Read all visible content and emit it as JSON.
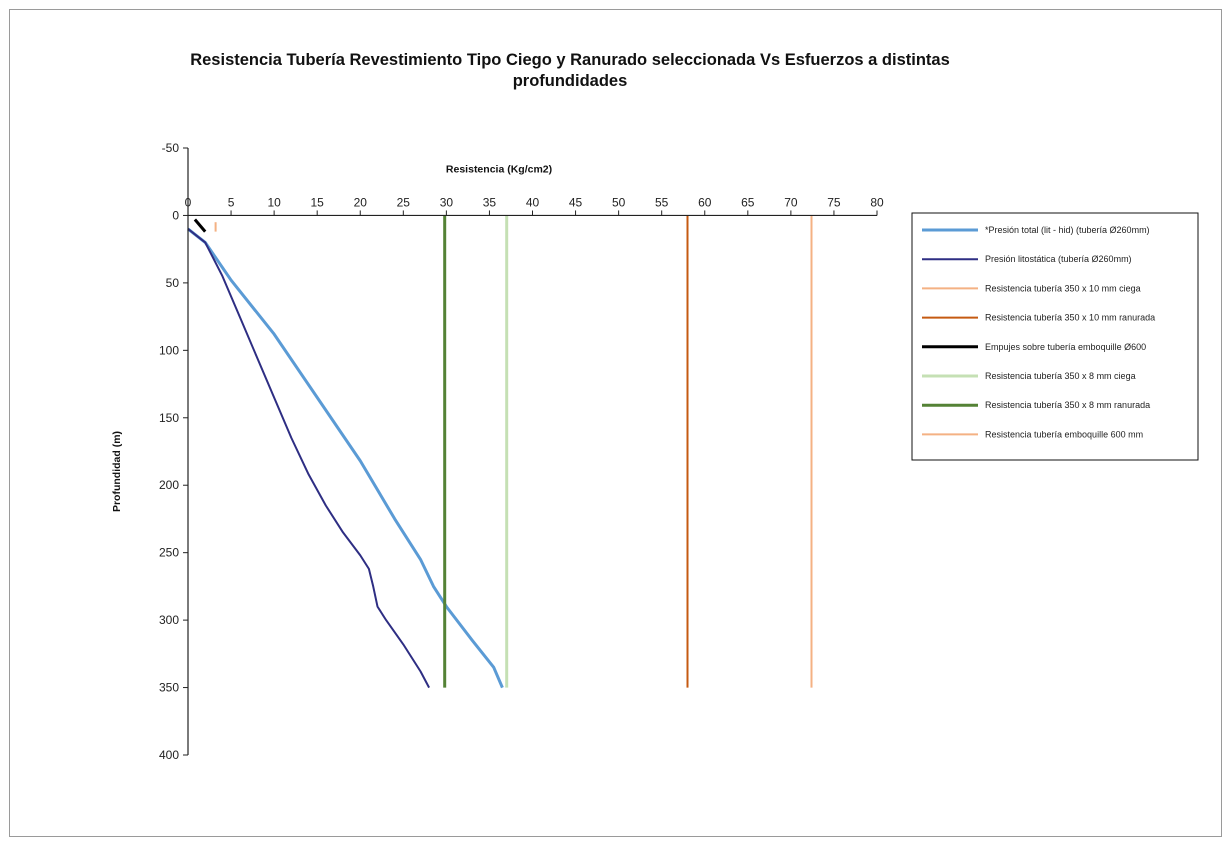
{
  "chart_data": {
    "type": "line",
    "title": "Resistencia Tubería Revestimiento Tipo Ciego y Ranurado seleccionada Vs Esfuerzos a distintas profundidades",
    "xlabel": "Resistencia (Kg/cm2)",
    "ylabel": "Profundidad (m)",
    "xlim": [
      0,
      80
    ],
    "ylim": [
      -50,
      400
    ],
    "y_inverted": true,
    "x_axis_position": "top",
    "x_ticks": [
      "0",
      "5",
      "10",
      "15",
      "20",
      "25",
      "30",
      "35",
      "40",
      "45",
      "50",
      "55",
      "60",
      "65",
      "70",
      "75",
      "80"
    ],
    "y_ticks": [
      "-50",
      "0",
      "50",
      "100",
      "150",
      "200",
      "250",
      "300",
      "350",
      "400"
    ],
    "grid": false,
    "legend_position": "right",
    "series": [
      {
        "name": "*Presión total (lit - hid) (tubería Ø260mm)",
        "color": "#5b9bd5",
        "width": 3,
        "x": [
          0,
          1,
          2,
          5,
          10,
          15,
          20,
          24,
          27,
          28.5,
          30,
          33,
          35.5,
          36.5
        ],
        "y": [
          10,
          15,
          20,
          48,
          88,
          135,
          182,
          225,
          255,
          275,
          290,
          315,
          335,
          350
        ]
      },
      {
        "name": "Presión litostática (tubería Ø260mm)",
        "color": "#2e2e83",
        "width": 2,
        "x": [
          0,
          1,
          2,
          4,
          6,
          8,
          10,
          12,
          14,
          16,
          18,
          20,
          21,
          21.5,
          22,
          23,
          25,
          27,
          28
        ],
        "y": [
          10,
          15,
          20,
          45,
          75,
          105,
          135,
          165,
          192,
          215,
          235,
          252,
          262,
          275,
          290,
          300,
          318,
          338,
          350
        ]
      },
      {
        "name": "Resistencia tubería 350 x 10 mm ciega",
        "color": "#f4b183",
        "width": 2,
        "x": [
          72.4,
          72.4
        ],
        "y": [
          0,
          350
        ]
      },
      {
        "name": "Resistencia tubería 350 x 10 mm ranurada",
        "color": "#c55a11",
        "width": 2,
        "x": [
          58,
          58
        ],
        "y": [
          0,
          350
        ]
      },
      {
        "name": "Empujes sobre tubería emboquille Ø600",
        "color": "#000000",
        "width": 3,
        "x": [
          0.8,
          2
        ],
        "y": [
          3,
          12
        ]
      },
      {
        "name": "Resistencia tubería 350 x 8 mm ciega",
        "color": "#c5e0b4",
        "width": 3,
        "x": [
          37,
          37
        ],
        "y": [
          0,
          350
        ]
      },
      {
        "name": "Resistencia tubería 350 x 8 mm ranurada",
        "color": "#548235",
        "width": 3,
        "x": [
          29.8,
          29.8
        ],
        "y": [
          0,
          350
        ]
      },
      {
        "name": "Resistencia tubería emboquille 600 mm",
        "color": "#f4b183",
        "width": 2,
        "x": [
          3.2,
          3.2
        ],
        "y": [
          5,
          12
        ]
      }
    ]
  }
}
